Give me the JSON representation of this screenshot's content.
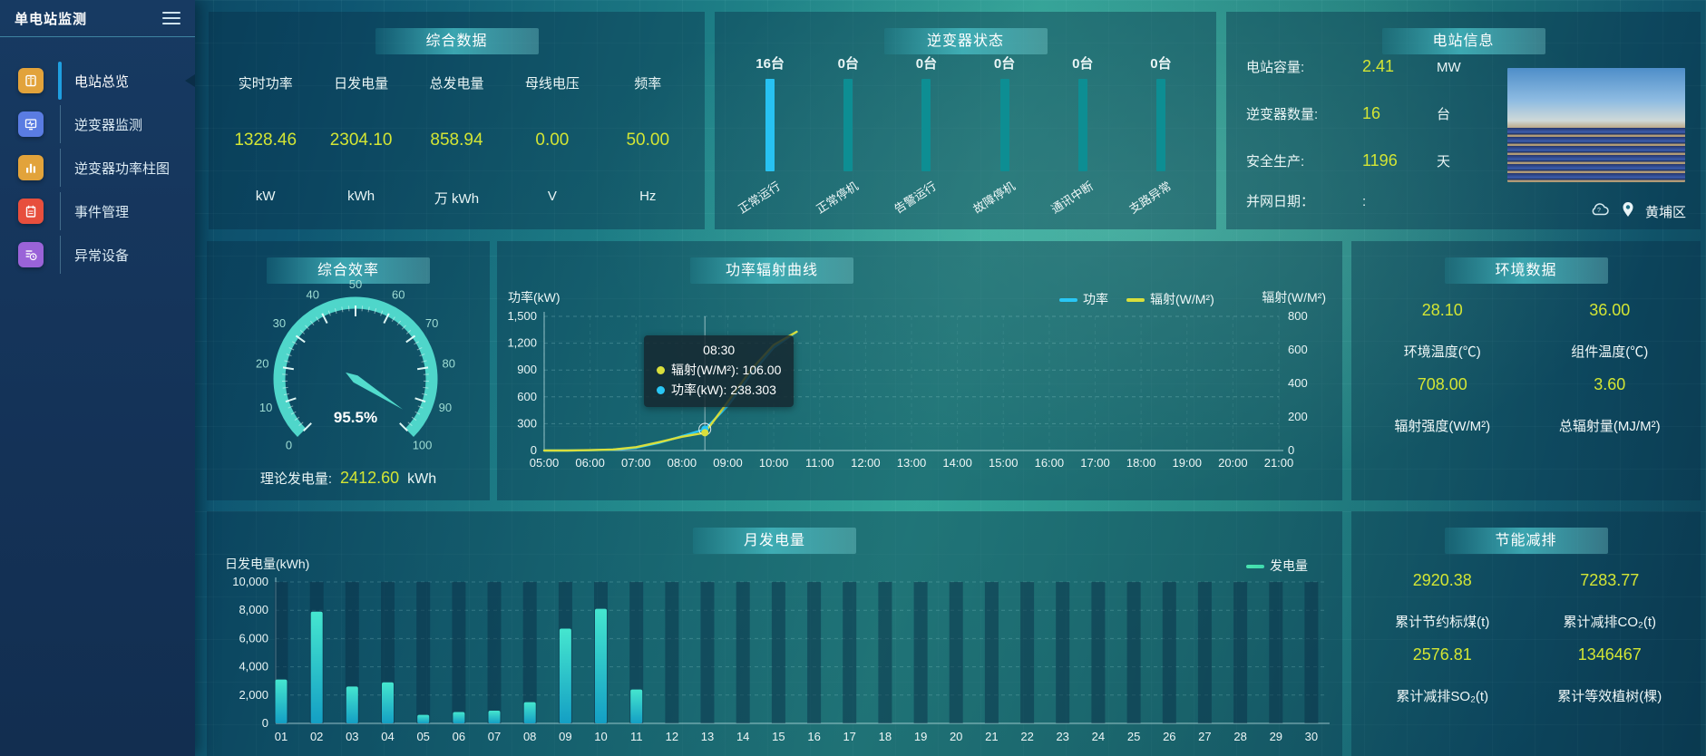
{
  "app": {
    "title": "单电站监测"
  },
  "sidebar": {
    "items": [
      {
        "name": "station-overview",
        "label": "电站总览",
        "icon": "ledger-icon",
        "icon_bg": "#e2a33b",
        "active": true
      },
      {
        "name": "inverter-monitor",
        "label": "逆变器监测",
        "icon": "inverter-wave-icon",
        "icon_bg": "#5a7ce2",
        "active": false
      },
      {
        "name": "inverter-power-bars",
        "label": "逆变器功率柱图",
        "icon": "bar-chart-icon",
        "icon_bg": "#e2a33b",
        "active": false
      },
      {
        "name": "event-management",
        "label": "事件管理",
        "icon": "event-notebook-icon",
        "icon_bg": "#e74f3d",
        "active": false
      },
      {
        "name": "abnormal-devices",
        "label": "异常设备",
        "icon": "abnormal-device-icon",
        "icon_bg": "#9a63d8",
        "active": false
      }
    ]
  },
  "overview_panel": {
    "title": "综合数据",
    "stats": [
      {
        "label": "实时功率",
        "value": "1328.46",
        "unit": "kW"
      },
      {
        "label": "日发电量",
        "value": "2304.10",
        "unit": "kWh"
      },
      {
        "label": "总发电量",
        "value": "858.94",
        "unit": "万 kWh"
      },
      {
        "label": "母线电压",
        "value": "0.00",
        "unit": "V"
      },
      {
        "label": "频率",
        "value": "50.00",
        "unit": "Hz"
      }
    ]
  },
  "inverter_panel": {
    "title": "逆变器状态"
  },
  "station_panel": {
    "title": "电站信息",
    "rows": [
      {
        "label": "电站容量:",
        "value": "2.41",
        "unit": "MW"
      },
      {
        "label": "逆变器数量:",
        "value": "16",
        "unit": "台"
      },
      {
        "label": "安全生产:",
        "value": "1196",
        "unit": "天"
      },
      {
        "label": "并网日期：",
        "value": ":",
        "unit": ""
      }
    ],
    "location": "黄埔区",
    "photo": "solar-panel-field-photo"
  },
  "efficiency_panel": {
    "title": "综合效率",
    "theory_label": "理论发电量:",
    "theory_value": "2412.60",
    "theory_unit": "kWh"
  },
  "power_chart": {
    "title": "功率辐射曲线",
    "y_left_title": "功率(kW)",
    "y_right_title": "辐射(W/M²)",
    "legend": [
      {
        "name": "功率",
        "color": "#29c7f5"
      },
      {
        "name": "辐射(W/M²)",
        "color": "#d9df3c"
      }
    ],
    "tooltip": {
      "time": "08:30",
      "rows": [
        {
          "color": "#d9df3c",
          "label": "辐射(W/M²): 106.00"
        },
        {
          "color": "#29c7f5",
          "label": "功率(kW): 238.303"
        }
      ]
    }
  },
  "env_panel": {
    "title": "环境数据",
    "cells": [
      {
        "value": "28.10",
        "label": "环境温度(℃)"
      },
      {
        "value": "36.00",
        "label": "组件温度(℃)"
      },
      {
        "value": "708.00",
        "label": "辐射强度(W/M²)"
      },
      {
        "value": "3.60",
        "label": "总辐射量(MJ/M²)"
      }
    ]
  },
  "month_chart": {
    "title": "月发电量",
    "y_title": "日发电量(kWh)",
    "legend_label": "发电量",
    "legend_color": "#3fd9ad"
  },
  "saving_panel": {
    "title": "节能减排",
    "cells": [
      {
        "value": "2920.38",
        "label": "累计节约标煤(t)"
      },
      {
        "value": "7283.77",
        "label": "累计减排CO₂(t)"
      },
      {
        "value": "2576.81",
        "label": "累计减排SO₂(t)"
      },
      {
        "value": "1346467",
        "label": "累计等效植树(棵)"
      }
    ]
  },
  "colors": {
    "value_accent": "#d3e534",
    "inverter_bar_highlight": "#27c2f2",
    "inverter_bar_normal": "#0d8e93",
    "active_menu_rail": "#1f9fe0"
  },
  "chart_data": {
    "inverter_status": {
      "type": "bar",
      "categories": [
        "正常运行",
        "正常停机",
        "告警运行",
        "故障停机",
        "通讯中断",
        "支路异常"
      ],
      "values": [
        16,
        0,
        0,
        0,
        0,
        0
      ],
      "unit": "台"
    },
    "efficiency_gauge": {
      "type": "gauge",
      "min": 0,
      "max": 100,
      "value": 95.5,
      "label": "95.5%",
      "ticks": [
        0,
        10,
        20,
        30,
        40,
        50,
        60,
        70,
        80,
        90,
        100
      ]
    },
    "power_radiation": {
      "type": "line",
      "x_axis_labels": [
        "05:00",
        "06:00",
        "07:00",
        "08:00",
        "09:00",
        "10:00",
        "11:00",
        "12:00",
        "13:00",
        "14:00",
        "15:00",
        "16:00",
        "17:00",
        "18:00",
        "19:00",
        "20:00",
        "21:00"
      ],
      "x_hours": [
        5,
        5.5,
        6,
        6.5,
        7,
        7.5,
        8,
        8.5,
        9,
        9.5,
        10,
        10.5
      ],
      "series": [
        {
          "name": "功率",
          "axis": "left",
          "color": "#29c7f5",
          "values": [
            0,
            0,
            3,
            10,
            30,
            85,
            160,
            238.303,
            500,
            850,
            1150,
            1328.46
          ]
        },
        {
          "name": "辐射(W/M²)",
          "axis": "right",
          "color": "#d9df3c",
          "values": [
            0,
            0,
            2,
            6,
            20,
            50,
            82,
            106,
            290,
            480,
            630,
            708
          ]
        }
      ],
      "y_left": {
        "min": 0,
        "max": 1500,
        "step": 300,
        "labels": [
          "0",
          "300",
          "600",
          "900",
          "1,200",
          "1,500"
        ]
      },
      "y_right": {
        "min": 0,
        "max": 800,
        "step": 200,
        "labels": [
          "0",
          "200",
          "400",
          "600",
          "800"
        ]
      },
      "crosshair_x": 8.5,
      "grid": true,
      "legend_position": "top-right"
    },
    "monthly_energy": {
      "type": "bar",
      "categories": [
        "01",
        "02",
        "03",
        "04",
        "05",
        "06",
        "07",
        "08",
        "09",
        "10",
        "11",
        "12",
        "13",
        "14",
        "15",
        "16",
        "17",
        "18",
        "19",
        "20",
        "21",
        "22",
        "23",
        "24",
        "25",
        "26",
        "27",
        "28",
        "29",
        "30"
      ],
      "values": [
        3100,
        7900,
        2600,
        2900,
        600,
        800,
        900,
        1500,
        6700,
        8100,
        2400,
        0,
        0,
        0,
        0,
        0,
        0,
        0,
        0,
        0,
        0,
        0,
        0,
        0,
        0,
        0,
        0,
        0,
        0,
        0
      ],
      "y": {
        "min": 0,
        "max": 10000,
        "step": 2000,
        "labels": [
          "0",
          "2,000",
          "4,000",
          "6,000",
          "8,000",
          "10,000"
        ]
      },
      "bar_gradient": [
        "#45e6cf",
        "#149fc4"
      ],
      "grid": true
    }
  }
}
